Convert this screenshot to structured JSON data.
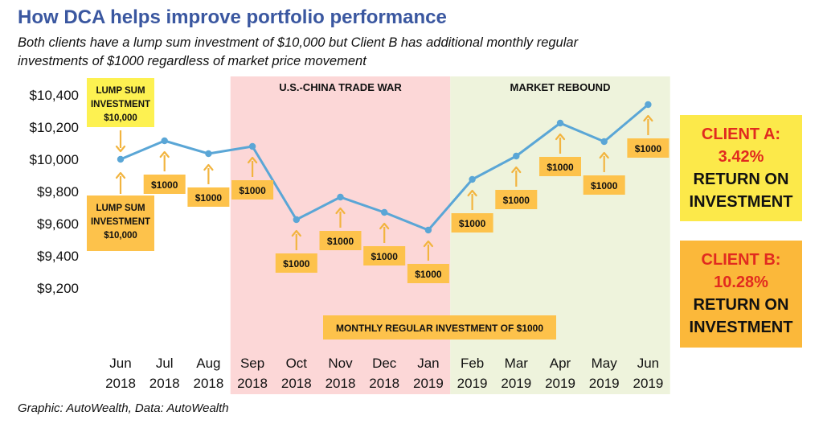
{
  "header": {
    "title": "How DCA helps improve portfolio performance",
    "subtitle": "Both clients have a lump sum investment of $10,000 but Client B has additional monthly regular investments of $1000 regardless of market price movement"
  },
  "chart_data": {
    "type": "line",
    "title": "How DCA helps improve portfolio performance",
    "categories": [
      "Jun 2018",
      "Jul 2018",
      "Aug 2018",
      "Sep 2018",
      "Oct 2018",
      "Nov 2018",
      "Dec 2018",
      "Jan 2019",
      "Feb 2019",
      "Mar 2019",
      "Apr 2019",
      "May 2019",
      "Jun 2019"
    ],
    "x_tick_labels": [
      [
        "Jun",
        "2018"
      ],
      [
        "Jul",
        "2018"
      ],
      [
        "Aug",
        "2018"
      ],
      [
        "Sep",
        "2018"
      ],
      [
        "Oct",
        "2018"
      ],
      [
        "Nov",
        "2018"
      ],
      [
        "Dec",
        "2018"
      ],
      [
        "Jan",
        "2019"
      ],
      [
        "Feb",
        "2019"
      ],
      [
        "Mar",
        "2019"
      ],
      [
        "Apr",
        "2019"
      ],
      [
        "May",
        "2019"
      ],
      [
        "Jun",
        "2019"
      ]
    ],
    "values": [
      10000,
      10115,
      10035,
      10080,
      9625,
      9765,
      9670,
      9560,
      9875,
      10020,
      10225,
      10110,
      10340
    ],
    "ylim": [
      9200,
      10400
    ],
    "y_ticks": [
      9200,
      9400,
      9600,
      9800,
      10000,
      10200,
      10400
    ],
    "y_tick_labels": [
      "$9,200",
      "$9,400",
      "$9,600",
      "$9,800",
      "$10,000",
      "$10,200",
      "$10,400"
    ],
    "line_color": "#5aa6d6",
    "bands": [
      {
        "label": "U.S.-CHINA TRADE WAR",
        "from": 2.5,
        "to": 7.5,
        "color": "#fcd7d7"
      },
      {
        "label": "MARKET REBOUND",
        "from": 7.5,
        "to": 12.5,
        "color": "#eef3dc"
      }
    ],
    "investments": [
      {
        "index": 1,
        "label": "$1000",
        "place": "below"
      },
      {
        "index": 2,
        "label": "$1000",
        "place": "below"
      },
      {
        "index": 3,
        "label": "$1000",
        "place": "below"
      },
      {
        "index": 4,
        "label": "$1000",
        "place": "below"
      },
      {
        "index": 5,
        "label": "$1000",
        "place": "below"
      },
      {
        "index": 6,
        "label": "$1000",
        "place": "below"
      },
      {
        "index": 7,
        "label": "$1000",
        "place": "below"
      },
      {
        "index": 8,
        "label": "$1000",
        "place": "below"
      },
      {
        "index": 9,
        "label": "$1000",
        "place": "below"
      },
      {
        "index": 10,
        "label": "$1000",
        "place": "below"
      },
      {
        "index": 11,
        "label": "$1000",
        "place": "below"
      },
      {
        "index": 12,
        "label": "$1000",
        "place": "below"
      }
    ],
    "lump_sum_top": [
      "LUMP SUM",
      "INVESTMENT",
      "$10,000"
    ],
    "lump_sum_bottom": [
      "LUMP SUM",
      "INVESTMENT",
      "$10,000"
    ],
    "monthly_label": "MONTHLY REGULAR INVESTMENT OF $1000",
    "colors": {
      "callout_yellow": "#fdf151",
      "box_orange": "#fdc24b",
      "arrow": "#f2b43f"
    }
  },
  "clients": {
    "a": {
      "name": "CLIENT A:",
      "pct": "3.42%",
      "line1": "RETURN ON",
      "line2": "INVESTMENT",
      "bg": "#fce94a"
    },
    "b": {
      "name": "CLIENT B:",
      "pct": "10.28%",
      "line1": "RETURN ON",
      "line2": "INVESTMENT",
      "bg": "#fbb83a"
    }
  },
  "footer": {
    "source": "Graphic: AutoWealth, Data: AutoWealth"
  }
}
